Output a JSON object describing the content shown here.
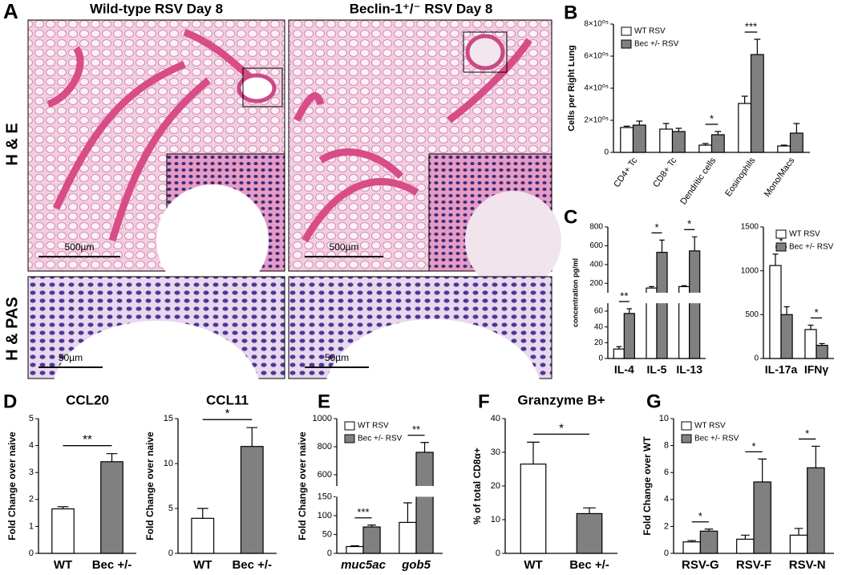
{
  "figure": {
    "histology": {
      "panel": "A",
      "columns": [
        "Wild-type RSV Day 8",
        "Beclin-1⁺/⁻ RSV Day 8"
      ],
      "rows": [
        "H & E",
        "H & PAS"
      ],
      "scale_bars": [
        "500µm",
        "500µm",
        "50µm",
        "50µm"
      ]
    }
  },
  "chart_data": [
    {
      "panel": "B",
      "type": "bar",
      "ylabel": "Cells per Right Lung",
      "categories": [
        "CD4+ Tc",
        "CD8+ Tc",
        "Dendritic cells",
        "Eosinophils",
        "Mono/Macs"
      ],
      "series": [
        {
          "name": "WT RSV",
          "color": "#ffffff",
          "values": [
            155000,
            145000,
            45000,
            305000,
            40000
          ],
          "errors": [
            8000,
            35000,
            10000,
            45000,
            5000
          ]
        },
        {
          "name": "Bec +/- RSV",
          "color": "#808080",
          "values": [
            170000,
            130000,
            110000,
            610000,
            120000
          ],
          "errors": [
            25000,
            20000,
            20000,
            95000,
            60000
          ]
        }
      ],
      "ylim": [
        0,
        800000
      ],
      "yticks": [
        0,
        {
          "value": 200000,
          "label": "2×10⁰⁵"
        },
        {
          "value": 400000,
          "label": "4×10⁰⁵"
        },
        {
          "value": 600000,
          "label": "6×10⁰⁵"
        },
        {
          "value": 800000,
          "label": "8×10⁰⁵"
        }
      ],
      "significance": [
        null,
        null,
        "*",
        "***",
        null
      ],
      "legend": "upper-left",
      "rotate_labels": true
    },
    {
      "panel": "C",
      "type": "bar",
      "ylabel": "concentration pg/ml",
      "categories": [
        "IL-4",
        "IL-5",
        "IL-13"
      ],
      "series": [
        {
          "color": "#ffffff",
          "values": [
            12,
            150,
            165
          ],
          "errors": [
            3,
            15,
            10
          ]
        },
        {
          "color": "#808080",
          "values": [
            57,
            530,
            545
          ],
          "errors": [
            6,
            130,
            150
          ]
        }
      ],
      "segments": [
        {
          "ylim": [
            0,
            70
          ],
          "yticks": [
            0,
            20,
            40,
            60
          ]
        },
        {
          "ylim": [
            100,
            800
          ],
          "yticks": [
            200,
            400,
            600,
            800
          ]
        }
      ],
      "significance": [
        "**",
        "*",
        "*"
      ]
    },
    {
      "type": "bar",
      "categories": [
        "IL-17a",
        "IFNγ"
      ],
      "series": [
        {
          "name": "WT RSV",
          "color": "#ffffff",
          "values": [
            1060,
            330
          ],
          "errors": [
            130,
            50
          ]
        },
        {
          "name": "Bec +/- RSV",
          "color": "#808080",
          "values": [
            500,
            150
          ],
          "errors": [
            90,
            20
          ]
        }
      ],
      "ylim": [
        0,
        1500
      ],
      "yticks": [
        0,
        500,
        1000,
        1500
      ],
      "significance": [
        "*",
        "*"
      ],
      "legend": "upper-right"
    },
    {
      "panel": "D",
      "type": "bar",
      "title": "CCL20",
      "ylabel": "Fold Change over naive",
      "categories": [
        "WT",
        "Bec +/-"
      ],
      "values": [
        1.65,
        3.4
      ],
      "errors": [
        0.08,
        0.3
      ],
      "colors": [
        "#ffffff",
        "#808080"
      ],
      "ylim": [
        0,
        5
      ],
      "yticks": [
        0,
        1,
        2,
        3,
        4,
        5
      ],
      "significance": "**"
    },
    {
      "type": "bar",
      "title": "CCL11",
      "ylabel": "Fold Change over naive",
      "categories": [
        "WT",
        "Bec +/-"
      ],
      "values": [
        3.9,
        11.9
      ],
      "errors": [
        1.1,
        2.1
      ],
      "colors": [
        "#ffffff",
        "#808080"
      ],
      "ylim": [
        0,
        15
      ],
      "yticks": [
        0,
        5,
        10,
        15
      ],
      "significance": "*"
    },
    {
      "panel": "E",
      "type": "bar",
      "ylabel": "Fold Change over naive",
      "categories": [
        "muc5ac",
        "gob5"
      ],
      "italic_labels": true,
      "series": [
        {
          "name": "WT RSV",
          "color": "#ffffff",
          "values": [
            18,
            82
          ],
          "errors": [
            2,
            52
          ]
        },
        {
          "name": "Bec +/- RSV",
          "color": "#808080",
          "values": [
            70,
            760
          ],
          "errors": [
            5,
            70
          ]
        }
      ],
      "segments": [
        {
          "ylim": [
            0,
            150
          ],
          "yticks": [
            0,
            50,
            100,
            150
          ]
        },
        {
          "ylim": [
            520,
            1000
          ],
          "yticks": [
            600,
            800,
            1000
          ]
        }
      ],
      "significance": [
        "***",
        "**"
      ],
      "legend": "upper-left"
    },
    {
      "panel": "F",
      "type": "bar",
      "title": "Granzyme B+",
      "ylabel": "% of total CD8α+",
      "categories": [
        "WT",
        "Bec +/-"
      ],
      "values": [
        26.5,
        11.8
      ],
      "errors": [
        6.5,
        1.7
      ],
      "colors": [
        "#ffffff",
        "#808080"
      ],
      "ylim": [
        0,
        40
      ],
      "yticks": [
        0,
        10,
        20,
        30,
        40
      ],
      "significance": "*"
    },
    {
      "panel": "G",
      "type": "bar",
      "ylabel": "Fold Change over WT",
      "categories": [
        "RSV-G",
        "RSV-F",
        "RSV-N"
      ],
      "series": [
        {
          "name": "WT RSV",
          "color": "#ffffff",
          "values": [
            0.85,
            1.05,
            1.35
          ],
          "errors": [
            0.1,
            0.3,
            0.5
          ]
        },
        {
          "name": "Bec +/- RSV",
          "color": "#808080",
          "values": [
            1.65,
            5.3,
            6.35
          ],
          "errors": [
            0.15,
            1.7,
            1.6
          ]
        }
      ],
      "ylim": [
        0,
        10
      ],
      "yticks": [
        0,
        2,
        4,
        6,
        8,
        10
      ],
      "significance": [
        "*",
        "*",
        "*"
      ],
      "legend": "upper-left"
    }
  ]
}
